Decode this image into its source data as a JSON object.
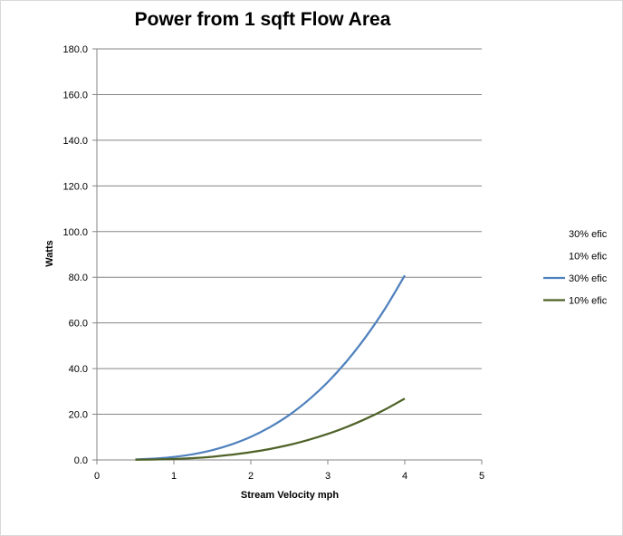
{
  "chart_data": {
    "type": "line",
    "title": "Power from 1 sqft Flow Area",
    "xlabel": "Stream Velocity mph",
    "ylabel": "Watts",
    "xlim": [
      0,
      5
    ],
    "ylim": [
      0,
      180
    ],
    "x_ticks": [
      "0",
      "1",
      "2",
      "3",
      "4",
      "5"
    ],
    "y_ticks": [
      "0.0",
      "20.0",
      "40.0",
      "60.0",
      "80.0",
      "100.0",
      "120.0",
      "140.0",
      "160.0",
      "180.0"
    ],
    "grid": true,
    "legend_position": "right",
    "legend_entries": [
      {
        "name": "30% efic",
        "color": null
      },
      {
        "name": "10% efic",
        "color": null
      },
      {
        "name": "30% efic",
        "color": "#4f81bd"
      },
      {
        "name": "10% efic",
        "color": "#4f6228"
      }
    ],
    "series": [
      {
        "name": "30% efic",
        "color": "#4f81bd",
        "x": [
          0.5,
          0.75,
          1.0,
          1.25,
          1.5,
          1.75,
          2.0,
          2.25,
          2.5,
          2.75,
          3.0,
          3.25,
          3.5,
          3.75,
          4.0
        ],
        "y": [
          0.2,
          0.6,
          1.3,
          2.5,
          4.3,
          6.8,
          10.1,
          14.4,
          19.7,
          26.3,
          34.1,
          43.4,
          54.2,
          66.6,
          80.8
        ]
      },
      {
        "name": "10% efic",
        "color": "#4f6228",
        "x": [
          0.5,
          0.75,
          1.0,
          1.25,
          1.5,
          1.75,
          2.0,
          2.25,
          2.5,
          2.75,
          3.0,
          3.25,
          3.5,
          3.75,
          4.0
        ],
        "y": [
          0.1,
          0.2,
          0.4,
          0.8,
          1.4,
          2.3,
          3.4,
          4.8,
          6.6,
          8.8,
          11.4,
          14.5,
          18.1,
          22.2,
          26.9
        ]
      }
    ]
  }
}
